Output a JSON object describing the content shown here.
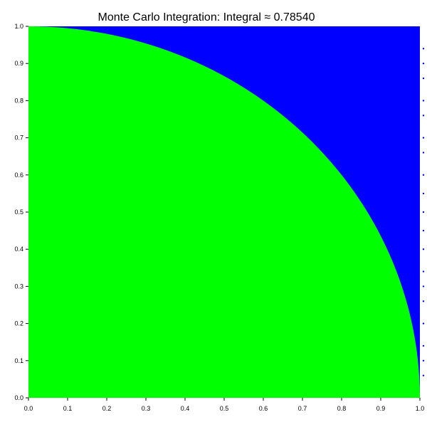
{
  "chart_data": {
    "type": "scatter",
    "title": "Monte Carlo Integration: Integral ≈ 0.78540",
    "xlabel": "",
    "ylabel": "",
    "xlim": [
      0,
      1
    ],
    "ylim": [
      0,
      1
    ],
    "x_ticks": [
      "0.0",
      "0.1",
      "0.2",
      "0.3",
      "0.4",
      "0.5",
      "0.6",
      "0.7",
      "0.8",
      "0.9",
      "1.0"
    ],
    "y_ticks": [
      "0.0",
      "0.1",
      "0.2",
      "0.3",
      "0.4",
      "0.5",
      "0.6",
      "0.7",
      "0.8",
      "0.9",
      "1.0"
    ],
    "grid": false,
    "region_boundary": "x^2 + y^2 = 1",
    "series": [
      {
        "color": "#00ff00",
        "condition": "x^2 + y^2 <= 1",
        "fraction": 0.7854
      },
      {
        "color": "#0000ff",
        "condition": "x^2 + y^2 > 1",
        "fraction": 0.2146
      }
    ]
  }
}
